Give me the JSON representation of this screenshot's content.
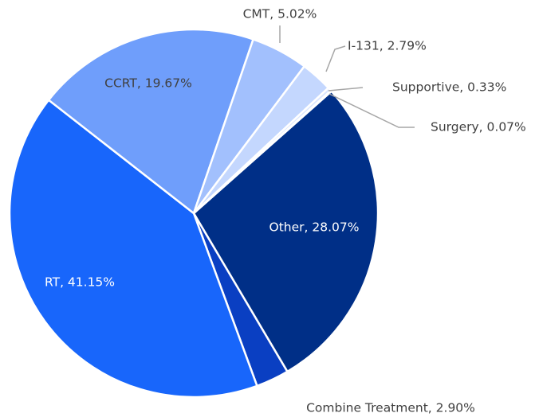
{
  "chart_data": {
    "type": "pie",
    "values": [
      28.07,
      2.9,
      41.15,
      19.67,
      5.02,
      2.79,
      0.33,
      0.07
    ],
    "value_labels": [
      "Other, 28.07%",
      "Combine Treatment, 2.90%",
      "RT, 41.15%",
      "CCRT, 19.67%",
      "CMT, 5.02%",
      "I-131, 2.79%",
      "Supportive, 0.33%",
      "Surgery, 0.07%"
    ],
    "colors": [
      "#002f87",
      "#0a3fc2",
      "#1866fb",
      "#6f9efb",
      "#a2c0fd",
      "#c4d7fe",
      "#dbe6fe",
      "#e8effe"
    ]
  }
}
